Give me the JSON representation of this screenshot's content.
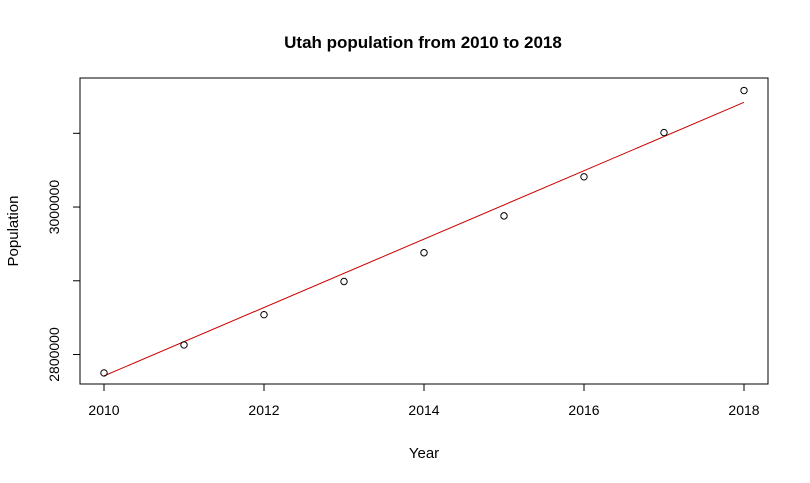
{
  "chart_data": {
    "type": "scatter",
    "title": "Utah population from 2010 to 2018",
    "xlabel": "Year",
    "ylabel": "Population",
    "x": [
      2010,
      2011,
      2012,
      2013,
      2014,
      2015,
      2016,
      2017,
      2018
    ],
    "y": [
      2775000,
      2813000,
      2854000,
      2899000,
      2938000,
      2988000,
      3041000,
      3101000,
      3158000
    ],
    "trend_line": {
      "x": [
        2010,
        2018
      ],
      "y": [
        2771000,
        3142000
      ],
      "color": "#cc0000"
    },
    "xlim": [
      2009.7,
      2018.3
    ],
    "ylim": [
      2760000,
      3175000
    ],
    "x_ticks": [
      2010,
      2012,
      2014,
      2016,
      2018
    ],
    "x_tick_labels": [
      "2010",
      "2012",
      "2014",
      "2016",
      "2018"
    ],
    "y_ticks": [
      2800000,
      3000000
    ],
    "y_tick_labels": [
      "2800000",
      "3000000"
    ],
    "y_minor_ticks": [
      2900000,
      3100000
    ],
    "point_color": "#000000",
    "axis_color": "#000000",
    "grid": false
  }
}
